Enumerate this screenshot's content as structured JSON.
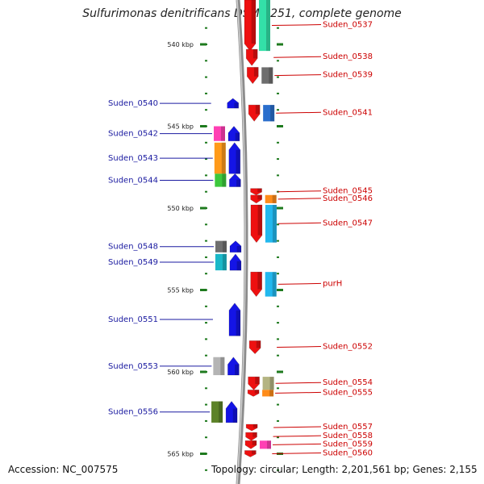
{
  "title": "Sulfurimonas denitrificans DSM 1251, complete genome",
  "accession": "Accession: NC_007575",
  "topology": "Topology: circular; Length: 2,201,561 bp; Genes: 2,155",
  "colors": {
    "forward_label": "#cc0000",
    "reverse_label": "#1a1aa0",
    "tick_green": "#1e7a1e",
    "backbone": "#8c8c8c"
  },
  "coordinate_ticks": [
    {
      "label": "540 kbp",
      "kbp": 540
    },
    {
      "label": "545 kbp",
      "kbp": 545
    },
    {
      "label": "550 kbp",
      "kbp": 550
    },
    {
      "label": "555 kbp",
      "kbp": 555
    },
    {
      "label": "560 kbp",
      "kbp": 560
    },
    {
      "label": "565 kbp",
      "kbp": 565
    }
  ],
  "genes": [
    {
      "label": "Suden_0537",
      "strand": "+",
      "start_kbp": 537.2,
      "end_kbp": 540.4,
      "cog_color": "#33e0a8"
    },
    {
      "label": "Suden_0538",
      "strand": "+",
      "start_kbp": 540.3,
      "end_kbp": 541.3,
      "cog_color": null
    },
    {
      "label": "Suden_0539",
      "strand": "+",
      "start_kbp": 541.4,
      "end_kbp": 542.4,
      "cog_color": "#6e6e6e"
    },
    {
      "label": "Suden_0540",
      "strand": "-",
      "start_kbp": 543.3,
      "end_kbp": 543.9,
      "cog_color": null
    },
    {
      "label": "Suden_0541",
      "strand": "+",
      "start_kbp": 543.7,
      "end_kbp": 544.7,
      "cog_color": "#2a6ecc"
    },
    {
      "label": "Suden_0542",
      "strand": "-",
      "start_kbp": 545.0,
      "end_kbp": 545.9,
      "cog_color": "#ff3fb4"
    },
    {
      "label": "Suden_0543",
      "strand": "-",
      "start_kbp": 546.0,
      "end_kbp": 547.9,
      "cog_color": "#ff9a1a"
    },
    {
      "label": "Suden_0544",
      "strand": "-",
      "start_kbp": 547.9,
      "end_kbp": 548.7,
      "cog_color": "#3cc83c"
    },
    {
      "label": "Suden_0545",
      "strand": "+",
      "start_kbp": 548.8,
      "end_kbp": 549.2,
      "cog_color": null
    },
    {
      "label": "Suden_0546",
      "strand": "+",
      "start_kbp": 549.2,
      "end_kbp": 549.7,
      "cog_color": "#ff8c1a"
    },
    {
      "label": "Suden_0547",
      "strand": "+",
      "start_kbp": 549.8,
      "end_kbp": 552.1,
      "cog_color": "#22b8ee"
    },
    {
      "label": "Suden_0548",
      "strand": "-",
      "start_kbp": 552.0,
      "end_kbp": 552.7,
      "cog_color": "#6e6e6e"
    },
    {
      "label": "Suden_0549",
      "strand": "-",
      "start_kbp": 552.8,
      "end_kbp": 553.8,
      "cog_color": "#1ab8c8"
    },
    {
      "label": "purH",
      "strand": "+",
      "start_kbp": 553.9,
      "end_kbp": 555.4,
      "cog_color": "#22b8ee"
    },
    {
      "label": "Suden_0551",
      "strand": "-",
      "start_kbp": 555.8,
      "end_kbp": 557.8,
      "cog_color": null
    },
    {
      "label": "Suden_0552",
      "strand": "+",
      "start_kbp": 558.1,
      "end_kbp": 558.9,
      "cog_color": null
    },
    {
      "label": "Suden_0553",
      "strand": "-",
      "start_kbp": 559.1,
      "end_kbp": 560.2,
      "cog_color": "#b4b4b4"
    },
    {
      "label": "Suden_0554",
      "strand": "+",
      "start_kbp": 560.3,
      "end_kbp": 561.1,
      "cog_color": "#b4b482"
    },
    {
      "label": "Suden_0555",
      "strand": "+",
      "start_kbp": 561.1,
      "end_kbp": 561.5,
      "cog_color": "#ff8c1a"
    },
    {
      "label": "Suden_0556",
      "strand": "-",
      "start_kbp": 561.8,
      "end_kbp": 563.1,
      "cog_color": "#5c8228"
    },
    {
      "label": "Suden_0557",
      "strand": "+",
      "start_kbp": 563.2,
      "end_kbp": 563.6,
      "cog_color": null
    },
    {
      "label": "Suden_0558",
      "strand": "+",
      "start_kbp": 563.7,
      "end_kbp": 564.2,
      "cog_color": null
    },
    {
      "label": "Suden_0559",
      "strand": "+",
      "start_kbp": 564.2,
      "end_kbp": 564.7,
      "cog_color": "#ff3fb4"
    },
    {
      "label": "Suden_0560",
      "strand": "+",
      "start_kbp": 564.8,
      "end_kbp": 565.2,
      "cog_color": null
    }
  ]
}
